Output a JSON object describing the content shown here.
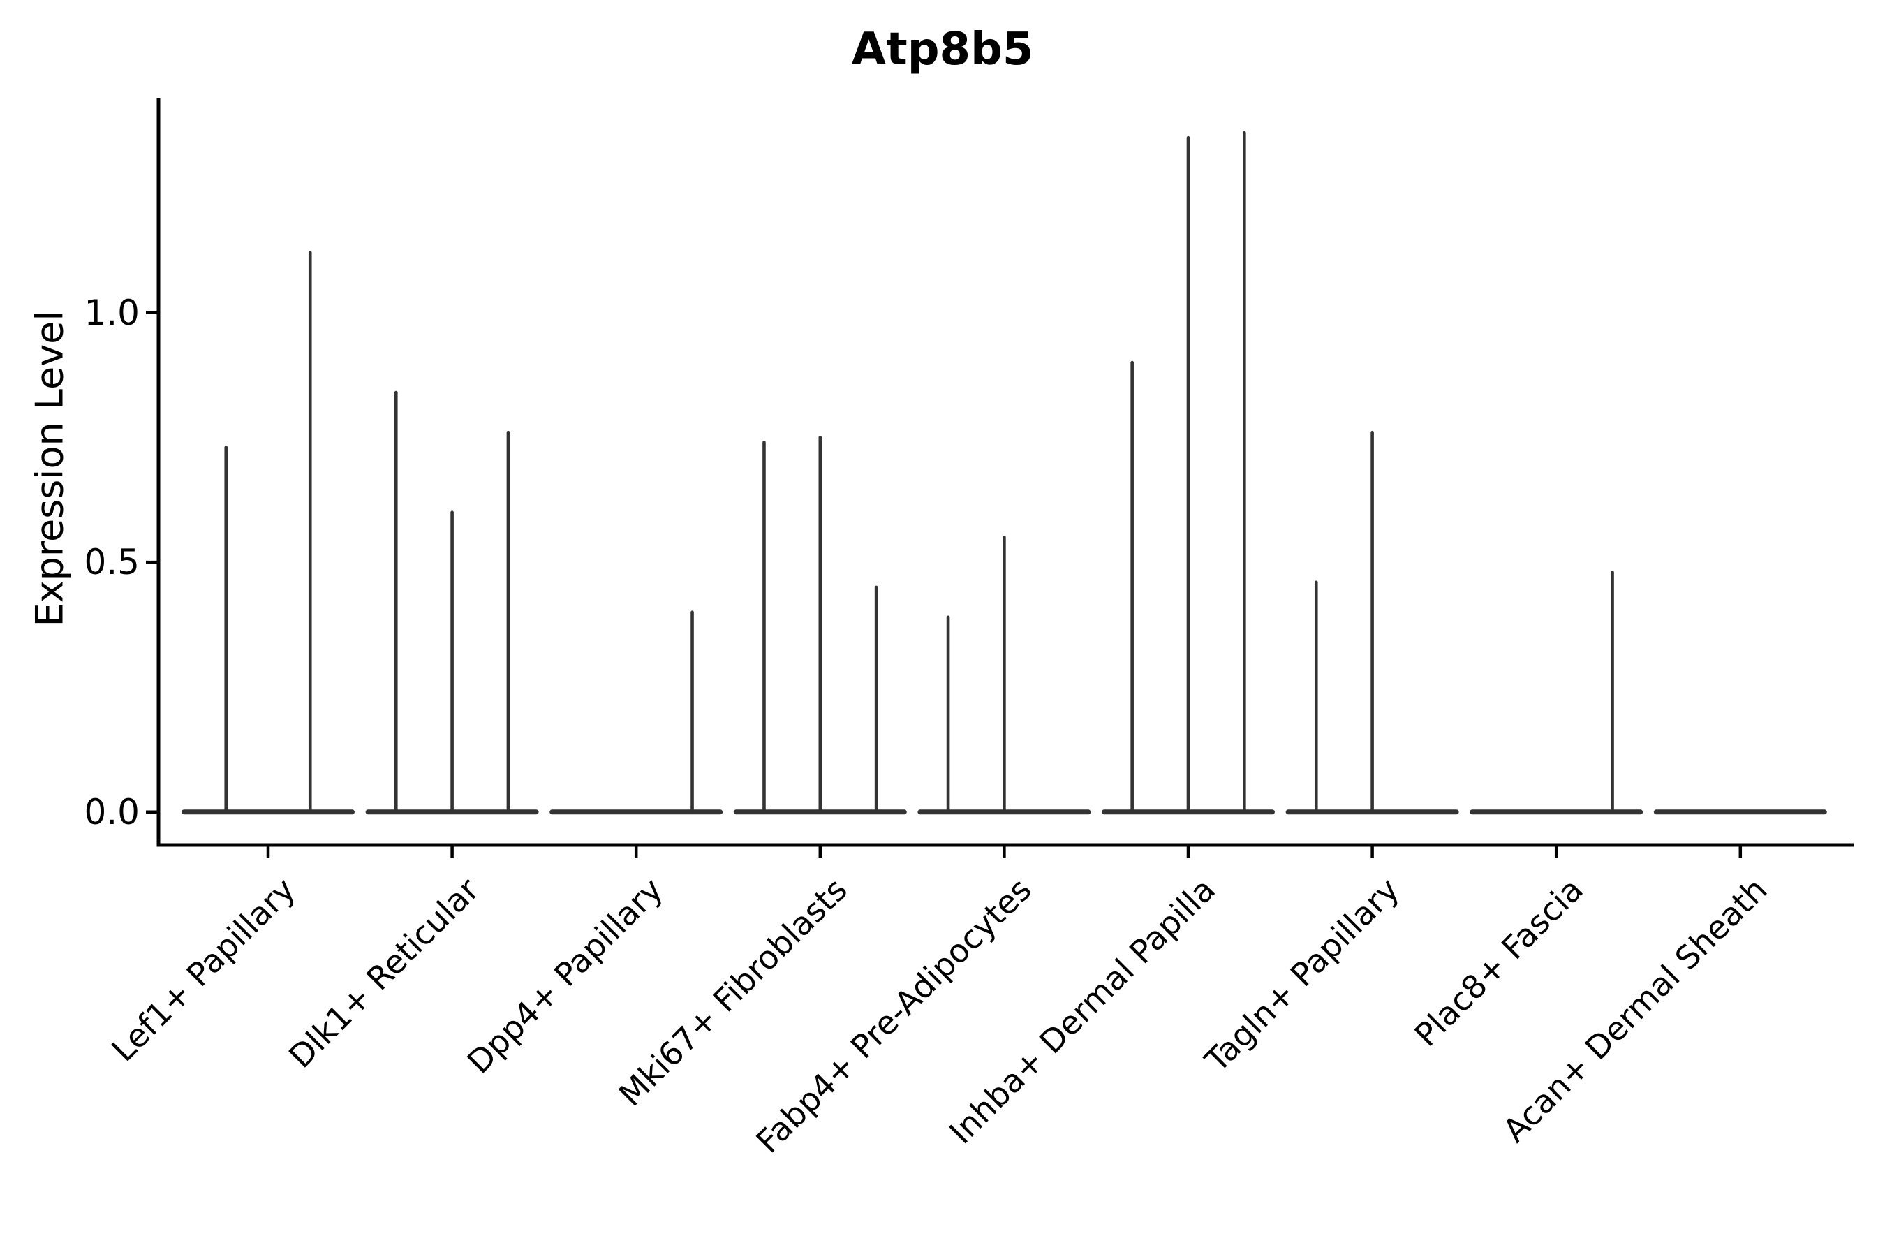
{
  "figure": {
    "title": "Atp8b5",
    "ylabel": "Expression Level"
  },
  "colors": {
    "background": "#ffffff",
    "axis": "#000000",
    "text": "#000000",
    "violin_line": "#333333"
  },
  "chart_data": {
    "type": "violin",
    "title": "Atp8b5",
    "xlabel": "",
    "ylabel": "Expression Level",
    "ylim": [
      -0.066,
      1.43
    ],
    "grid": false,
    "legend": "none",
    "yticks": [
      {
        "label": "0.0",
        "value": 0.0
      },
      {
        "label": "0.5",
        "value": 0.5
      },
      {
        "label": "1.0",
        "value": 1.0
      }
    ],
    "categories": [
      "Lef1+ Papillary",
      "Dlk1+ Reticular",
      "Dpp4+ Papillary",
      "Mki67+ Fibroblasts",
      "Fabp4+ Pre-Adipocytes",
      "Inhba+ Dermal Papilla",
      "Tagln+ Papillary",
      "Plac8+ Fascia",
      "Acan+ Dermal Sheath"
    ],
    "groups": [
      {
        "category": "Lef1+ Papillary",
        "violin_max_expression": [
          0.73,
          1.12
        ]
      },
      {
        "category": "Dlk1+ Reticular",
        "violin_max_expression": [
          0.84,
          0.6,
          0.76
        ]
      },
      {
        "category": "Dpp4+ Papillary",
        "violin_max_expression": [
          0,
          0,
          0.4
        ]
      },
      {
        "category": "Mki67+ Fibroblasts",
        "violin_max_expression": [
          0.74,
          0.75,
          0.45
        ]
      },
      {
        "category": "Fabp4+ Pre-Adipocytes",
        "violin_max_expression": [
          0.39,
          0.55,
          0
        ]
      },
      {
        "category": "Inhba+ Dermal Papilla",
        "violin_max_expression": [
          0.9,
          1.35,
          1.36
        ]
      },
      {
        "category": "Tagln+ Papillary",
        "violin_max_expression": [
          0.46,
          0.76,
          0
        ]
      },
      {
        "category": "Plac8+ Fascia",
        "violin_max_expression": [
          0,
          0,
          0.48
        ]
      },
      {
        "category": "Acan+ Dermal Sheath",
        "violin_max_expression": [
          0,
          0,
          0
        ]
      }
    ],
    "description": "Violin plot of Atp8b5 expression per fibroblast subtype; each category holds adjacent thin violins (flat baseline at 0 with a vertical density spike at the listed maximum expression; 0 = flat violin, no spike)"
  }
}
